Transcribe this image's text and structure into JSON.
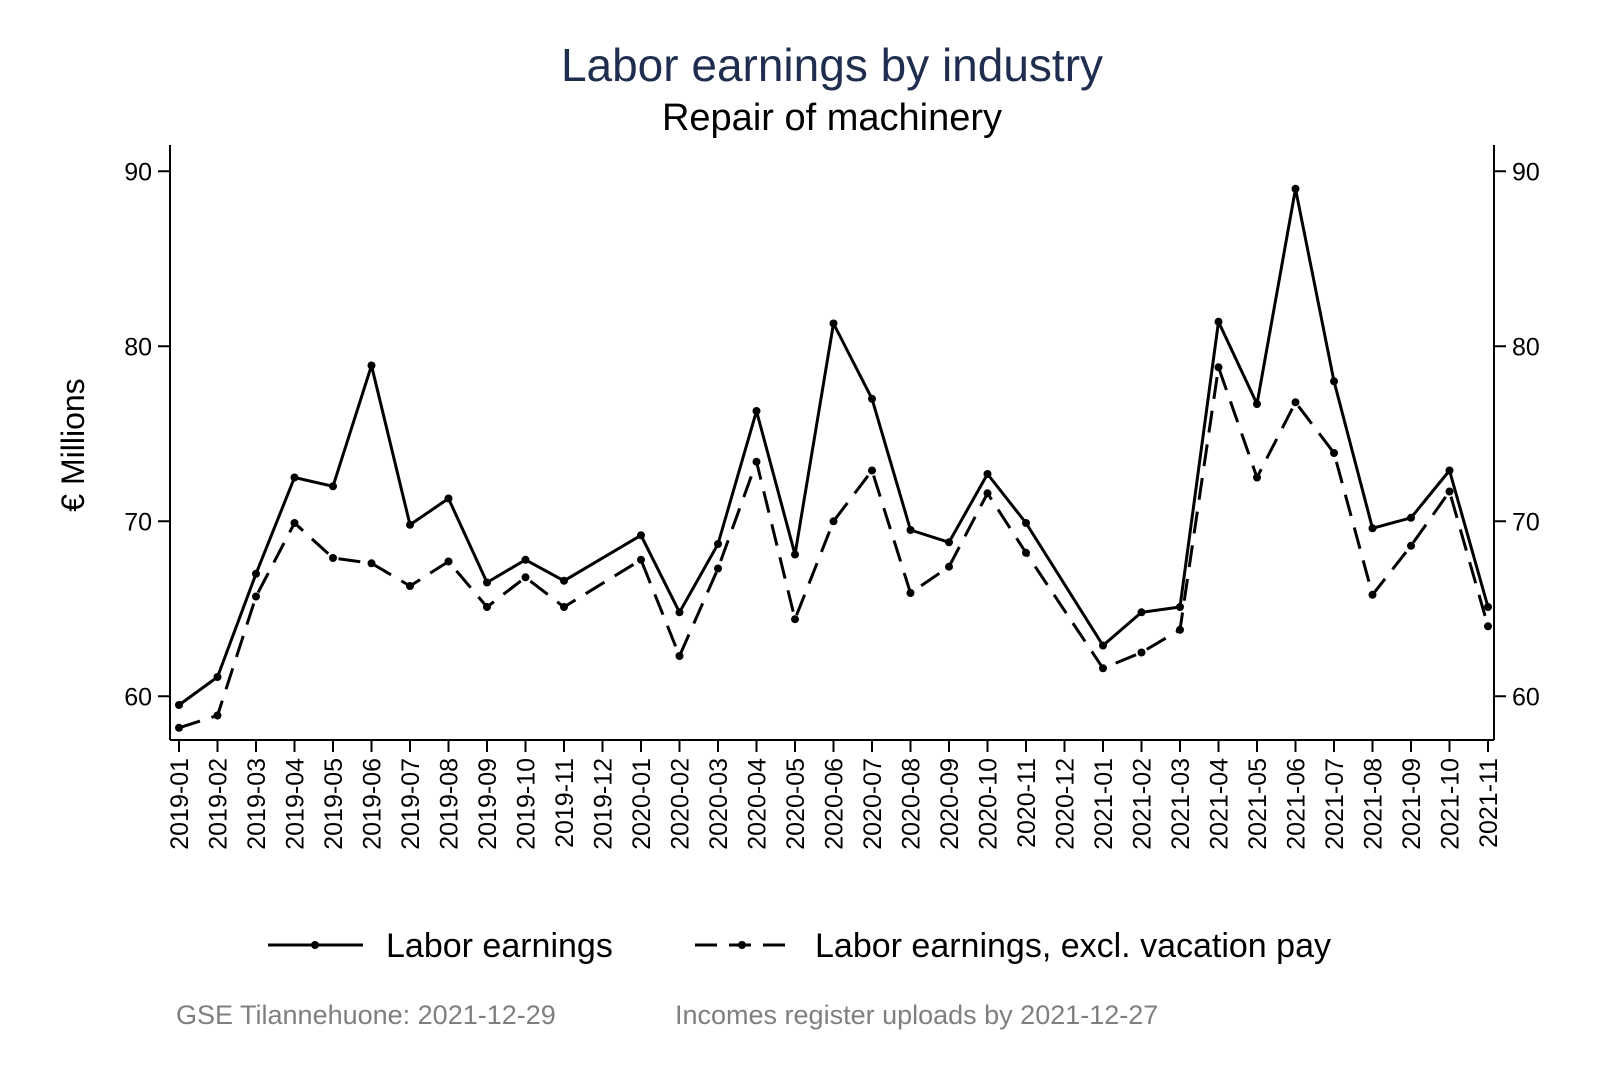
{
  "chart_data": {
    "type": "line",
    "title": "Labor earnings by industry",
    "subtitle": "Repair of machinery",
    "ylabel": "€ Millions",
    "xlabel": "",
    "ylim": [
      57.5,
      91.5
    ],
    "yticks": [
      60,
      70,
      80,
      90
    ],
    "right_axis": true,
    "grid": false,
    "legend_position": "bottom",
    "categories": [
      "2019-01",
      "2019-02",
      "2019-03",
      "2019-04",
      "2019-05",
      "2019-06",
      "2019-07",
      "2019-08",
      "2019-09",
      "2019-10",
      "2019-11",
      "2019-12",
      "2020-01",
      "2020-02",
      "2020-03",
      "2020-04",
      "2020-05",
      "2020-06",
      "2020-07",
      "2020-08",
      "2020-09",
      "2020-10",
      "2020-11",
      "2020-12",
      "2021-01",
      "2021-02",
      "2021-03",
      "2021-04",
      "2021-05",
      "2021-06",
      "2021-07",
      "2021-08",
      "2021-09",
      "2021-10",
      "2021-11"
    ],
    "series": [
      {
        "name": "Labor earnings",
        "style": "solid",
        "color": "#000000",
        "values": [
          59.5,
          61.1,
          67.0,
          72.5,
          72.0,
          78.9,
          69.8,
          71.3,
          66.5,
          67.8,
          66.6,
          null,
          69.2,
          64.8,
          68.7,
          76.3,
          68.1,
          81.3,
          77.0,
          69.5,
          68.8,
          72.7,
          69.9,
          null,
          62.9,
          64.8,
          65.1,
          81.4,
          76.7,
          89.0,
          78.0,
          69.6,
          70.2,
          72.9,
          65.1
        ]
      },
      {
        "name": "Labor earnings, excl. vacation pay",
        "style": "dashed",
        "color": "#000000",
        "values": [
          58.2,
          58.9,
          65.7,
          69.9,
          67.9,
          67.6,
          66.3,
          67.7,
          65.1,
          66.8,
          65.1,
          null,
          67.8,
          62.3,
          67.3,
          73.4,
          64.4,
          70.0,
          72.9,
          65.9,
          67.4,
          71.6,
          68.2,
          null,
          61.6,
          62.5,
          63.8,
          78.8,
          72.5,
          76.8,
          73.9,
          65.8,
          68.6,
          71.7,
          64.0
        ]
      }
    ]
  },
  "footer": {
    "source": "GSE Tilannehuone: 2021-12-29",
    "note": "Incomes register uploads by 2021-12-27"
  },
  "colors": {
    "title": "#1f2d4f",
    "text": "#000000",
    "footer": "#7f7f7f"
  }
}
